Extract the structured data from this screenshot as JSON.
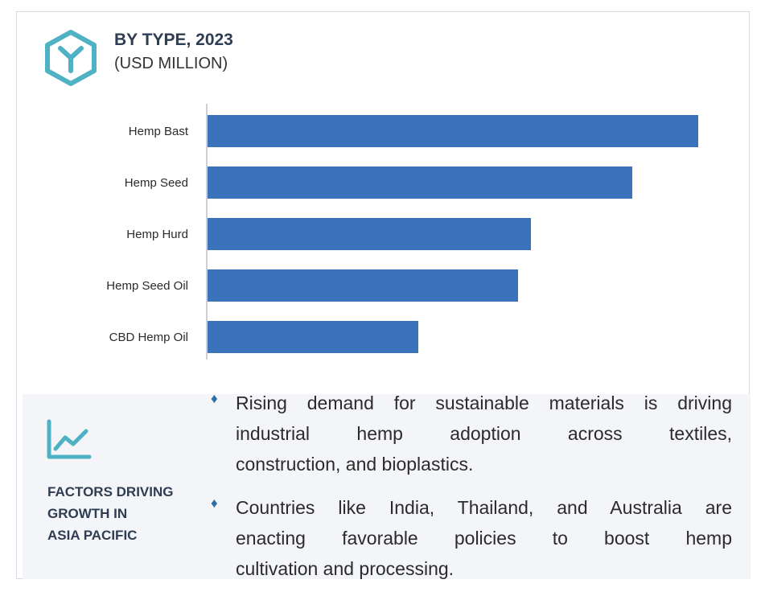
{
  "header": {
    "title": "BY TYPE, 2023",
    "subtitle": "(USD MILLION)",
    "icon": "hexagon-y-icon"
  },
  "chart_data": {
    "type": "bar",
    "orientation": "horizontal",
    "categories": [
      "Hemp Bast",
      "Hemp Seed",
      "Hemp Hurd",
      "Hemp Seed Oil",
      "CBD Hemp Oil"
    ],
    "values": [
      610,
      528,
      402,
      386,
      262
    ],
    "title": "BY TYPE, 2023",
    "subtitle": "(USD MILLION)",
    "xlabel": "",
    "ylabel": "",
    "xlim": [
      0,
      650
    ],
    "grid": false,
    "bar_color": "#3b73ba"
  },
  "factors": {
    "icon": "trend-line-icon",
    "heading_lines": [
      "FACTORS DRIVING",
      "GROWTH IN",
      "ASIA PACIFIC"
    ],
    "bullets": [
      {
        "lines": [
          "Rising demand for sustainable materials is driving",
          "industrial hemp adoption across textiles,",
          "construction, and bioplastics."
        ]
      },
      {
        "lines": [
          "Countries like India, Thailand, and Australia are",
          "enacting favorable policies to boost hemp",
          "cultivation and processing."
        ]
      }
    ]
  },
  "colors": {
    "accent": "#3b73ba",
    "heading": "#2e3d52",
    "icon": "#4fb1c4",
    "panel": "#f4f5f8"
  }
}
